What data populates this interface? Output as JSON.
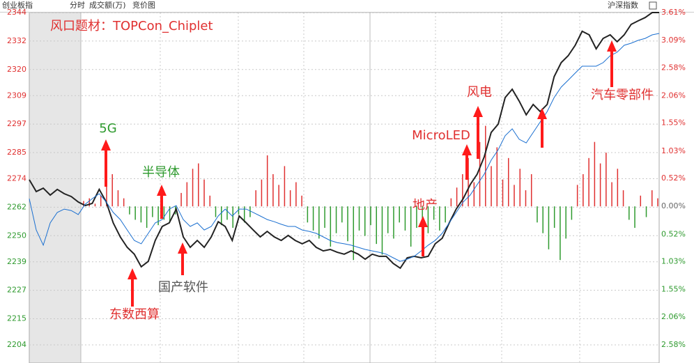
{
  "chart_data": {
    "type": "line",
    "title": "创业板指",
    "tabs": [
      "分时",
      "成交额(万)",
      "竞价图"
    ],
    "index_label": "沪深指数",
    "ylim": [
      2204,
      2344
    ],
    "yticks": [
      2344,
      2332,
      2320,
      2309,
      2297,
      2285,
      2274,
      2262,
      2250,
      2239,
      2227,
      2215,
      2204
    ],
    "y2lim": [
      -2.58,
      3.61
    ],
    "y2ticks": [
      {
        "value": 3.61,
        "label": "3.61%"
      },
      {
        "value": 3.09,
        "label": "3.09%"
      },
      {
        "value": 2.58,
        "label": "2.58%"
      },
      {
        "value": 2.06,
        "label": "2.06%"
      },
      {
        "value": 1.55,
        "label": "1.55%"
      },
      {
        "value": 1.03,
        "label": "1.03%"
      },
      {
        "value": 0.52,
        "label": "0.52%"
      },
      {
        "value": 0,
        "label": "0.00%"
      },
      {
        "value": -0.52,
        "label": "0.52%"
      },
      {
        "value": -1.03,
        "label": "1.03%"
      },
      {
        "value": -1.55,
        "label": "1.55%"
      },
      {
        "value": -2.06,
        "label": "2.06%"
      },
      {
        "value": -2.58,
        "label": "2.58%"
      }
    ],
    "grid": true,
    "up_color": "#e03030",
    "down_color": "#2e9a2e",
    "flat_color": "#666666",
    "series": [
      {
        "color": "#222222",
        "values": [
          2273.6,
          2268.6,
          2270.0,
          2267.1,
          2269.5,
          2267.7,
          2266.5,
          2264.2,
          2262.7,
          2263.6,
          2269.5,
          2264.2,
          2255.4,
          2249.5,
          2245.1,
          2242.2,
          2236.9,
          2239.2,
          2248.0,
          2253.9,
          2255.4,
          2261.2,
          2249.5,
          2245.1,
          2248.0,
          2245.1,
          2249.5,
          2255.9,
          2253.9,
          2248.0,
          2258.3,
          2255.4,
          2252.4,
          2249.5,
          2251.8,
          2249.5,
          2248.0,
          2250.1,
          2248.0,
          2246.6,
          2248.0,
          2245.1,
          2243.6,
          2244.2,
          2243.0,
          2242.2,
          2243.6,
          2242.2,
          2240.1,
          2242.2,
          2241.3,
          2241.3,
          2238.3,
          2236.3,
          2240.7,
          2241.3,
          2240.7,
          2241.3,
          2246.6,
          2248.9,
          2255.4,
          2261.2,
          2265.6,
          2271.5,
          2275.9,
          2283.2,
          2293.5,
          2297.0,
          2308.2,
          2311.7,
          2306.7,
          2300.9,
          2305.3,
          2302.3,
          2305.3,
          2317.0,
          2322.9,
          2325.8,
          2330.2,
          2336.1,
          2334.6,
          2328.7,
          2333.1,
          2334.6,
          2331.7,
          2334.6,
          2339.0,
          2340.5,
          2341.9,
          2344.0,
          2344.0
        ]
      },
      {
        "color": "#1a6fd0",
        "values": [
          2265.6,
          2252.4,
          2246.0,
          2255.4,
          2259.8,
          2261.2,
          2260.6,
          2258.9,
          2263.3,
          2265.6,
          2267.7,
          2264.2,
          2259.8,
          2256.8,
          2252.4,
          2248.0,
          2246.6,
          2251.0,
          2255.4,
          2256.8,
          2261.2,
          2262.7,
          2256.8,
          2253.9,
          2255.4,
          2252.4,
          2253.9,
          2258.3,
          2261.2,
          2258.3,
          2261.2,
          2261.2,
          2259.8,
          2258.3,
          2256.8,
          2255.9,
          2254.8,
          2253.9,
          2253.9,
          2252.4,
          2251.8,
          2251.0,
          2249.5,
          2248.0,
          2247.1,
          2246.6,
          2246.0,
          2245.1,
          2244.2,
          2243.6,
          2243.0,
          2242.2,
          2240.7,
          2239.2,
          2240.1,
          2241.3,
          2243.6,
          2246.0,
          2248.0,
          2251.0,
          2255.4,
          2259.8,
          2264.2,
          2267.1,
          2271.5,
          2275.9,
          2281.8,
          2286.2,
          2292.1,
          2295.0,
          2290.6,
          2289.1,
          2293.5,
          2297.9,
          2302.3,
          2308.2,
          2312.6,
          2315.5,
          2318.5,
          2321.4,
          2321.4,
          2321.4,
          2322.9,
          2325.8,
          2327.3,
          2330.2,
          2331.1,
          2332.3,
          2333.1,
          2334.6,
          2335.2
        ]
      },
      {
        "type": "bar",
        "axis": "y2",
        "values": [
          0.1,
          0.15,
          0.05,
          0.2,
          0.4,
          0.6,
          0.3,
          0.15,
          -0.15,
          -0.25,
          -0.3,
          -0.4,
          -0.2,
          -0.35,
          -0.25,
          -0.3,
          -0.15,
          0.25,
          0.45,
          0.7,
          0.8,
          0.5,
          0.2,
          -0.2,
          -0.35,
          -0.25,
          -0.4,
          -0.15,
          -0.3,
          -0.2,
          0.3,
          0.5,
          0.95,
          0.6,
          0.4,
          0.75,
          0.3,
          0.45,
          0.2,
          -0.3,
          -0.45,
          -0.6,
          -0.4,
          -0.75,
          -0.5,
          -0.3,
          -0.65,
          -1.0,
          -0.45,
          -0.55,
          -0.35,
          -0.7,
          -0.9,
          -0.5,
          -0.6,
          -0.3,
          -0.45,
          -0.75,
          -0.4,
          -0.6,
          -0.5,
          -0.25,
          -0.45,
          -0.3,
          0.15,
          0.35,
          0.6,
          0.9,
          0.45,
          1.2,
          1.5,
          0.75,
          1.1,
          0.5,
          0.9,
          0.4,
          0.7,
          0.3,
          0.6,
          -0.3,
          -0.5,
          -0.8,
          -0.4,
          -1.0,
          -0.6,
          -0.25,
          0.4,
          0.6,
          0.9,
          1.2,
          0.8,
          1.0,
          0.45,
          0.7,
          0.3,
          -0.25,
          -0.4,
          0.2,
          -0.2,
          0.3,
          0.15
        ]
      }
    ],
    "annotations": [
      {
        "text": "风口题材：TOPCon_Chiplet",
        "color": "#e03030"
      },
      {
        "text": "5G",
        "color": "#2e9a2e"
      },
      {
        "text": "半导体",
        "color": "#2e9a2e"
      },
      {
        "text": "东数西算",
        "color": "#e03030"
      },
      {
        "text": "国产软件",
        "color": "#555555"
      },
      {
        "text": "地产",
        "color": "#e03030"
      },
      {
        "text": "MicroLED",
        "color": "#e03030"
      },
      {
        "text": "风电",
        "color": "#e03030"
      },
      {
        "text": "汽车零部件",
        "color": "#e03030"
      }
    ]
  }
}
